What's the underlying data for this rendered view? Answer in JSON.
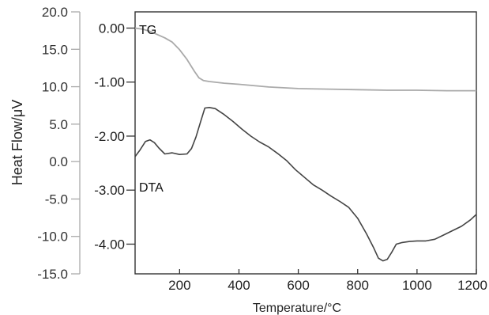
{
  "chart_data": {
    "type": "line",
    "xlabel": "Temperature/°C",
    "x_range": [
      50,
      1200
    ],
    "x_ticks": [
      "200",
      "400",
      "600",
      "800",
      "1000",
      "1200"
    ],
    "x_tick_values": [
      200,
      400,
      600,
      800,
      1000,
      1200
    ],
    "left_axis": {
      "label": "Heat Flow/μV",
      "range": [
        -15,
        20
      ],
      "ticks": [
        "20.0",
        "15.0",
        "10.0",
        "5.0",
        "0.0",
        "-5.0",
        "-10.0",
        "-15.0"
      ],
      "tick_values": [
        20,
        15,
        10,
        5,
        0,
        -5,
        -10,
        -15
      ]
    },
    "inner_axis": {
      "label": "",
      "range": [
        -4.55,
        0.3
      ],
      "ticks": [
        "0.00",
        "-1.00",
        "-2.00",
        "-3.00",
        "-4.00"
      ],
      "tick_values": [
        0,
        -1,
        -2,
        -3,
        -4
      ]
    },
    "colors": {
      "TG": "#aaaaaa",
      "DTA": "#444444",
      "axis": "#333333",
      "left_axis": "#aaaaaa"
    },
    "grid": false,
    "series": [
      {
        "name": "TG",
        "axis": "inner",
        "points": [
          [
            50,
            0.0
          ],
          [
            75,
            -0.02
          ],
          [
            100,
            -0.06
          ],
          [
            125,
            -0.12
          ],
          [
            150,
            -0.18
          ],
          [
            175,
            -0.26
          ],
          [
            200,
            -0.4
          ],
          [
            225,
            -0.58
          ],
          [
            250,
            -0.8
          ],
          [
            265,
            -0.92
          ],
          [
            280,
            -0.97
          ],
          [
            300,
            -0.99
          ],
          [
            350,
            -1.02
          ],
          [
            400,
            -1.04
          ],
          [
            500,
            -1.09
          ],
          [
            600,
            -1.12
          ],
          [
            700,
            -1.13
          ],
          [
            800,
            -1.14
          ],
          [
            900,
            -1.15
          ],
          [
            1000,
            -1.15
          ],
          [
            1100,
            -1.16
          ],
          [
            1200,
            -1.16
          ]
        ]
      },
      {
        "name": "DTA",
        "axis": "inner",
        "points": [
          [
            50,
            -2.38
          ],
          [
            65,
            -2.27
          ],
          [
            85,
            -2.1
          ],
          [
            100,
            -2.07
          ],
          [
            115,
            -2.12
          ],
          [
            130,
            -2.22
          ],
          [
            150,
            -2.33
          ],
          [
            175,
            -2.31
          ],
          [
            200,
            -2.34
          ],
          [
            225,
            -2.33
          ],
          [
            240,
            -2.23
          ],
          [
            255,
            -2.02
          ],
          [
            270,
            -1.75
          ],
          [
            285,
            -1.48
          ],
          [
            300,
            -1.47
          ],
          [
            320,
            -1.49
          ],
          [
            350,
            -1.6
          ],
          [
            380,
            -1.73
          ],
          [
            410,
            -1.87
          ],
          [
            440,
            -2.0
          ],
          [
            470,
            -2.11
          ],
          [
            500,
            -2.2
          ],
          [
            530,
            -2.32
          ],
          [
            560,
            -2.45
          ],
          [
            590,
            -2.62
          ],
          [
            620,
            -2.76
          ],
          [
            650,
            -2.9
          ],
          [
            680,
            -3.0
          ],
          [
            710,
            -3.11
          ],
          [
            740,
            -3.21
          ],
          [
            770,
            -3.32
          ],
          [
            800,
            -3.52
          ],
          [
            830,
            -3.81
          ],
          [
            855,
            -4.08
          ],
          [
            870,
            -4.26
          ],
          [
            885,
            -4.31
          ],
          [
            900,
            -4.28
          ],
          [
            915,
            -4.15
          ],
          [
            930,
            -4.0
          ],
          [
            950,
            -3.97
          ],
          [
            975,
            -3.95
          ],
          [
            1000,
            -3.94
          ],
          [
            1030,
            -3.94
          ],
          [
            1060,
            -3.91
          ],
          [
            1090,
            -3.83
          ],
          [
            1120,
            -3.75
          ],
          [
            1150,
            -3.67
          ],
          [
            1180,
            -3.55
          ],
          [
            1200,
            -3.45
          ]
        ]
      }
    ],
    "annotations": [
      "TG",
      "DTA"
    ]
  }
}
